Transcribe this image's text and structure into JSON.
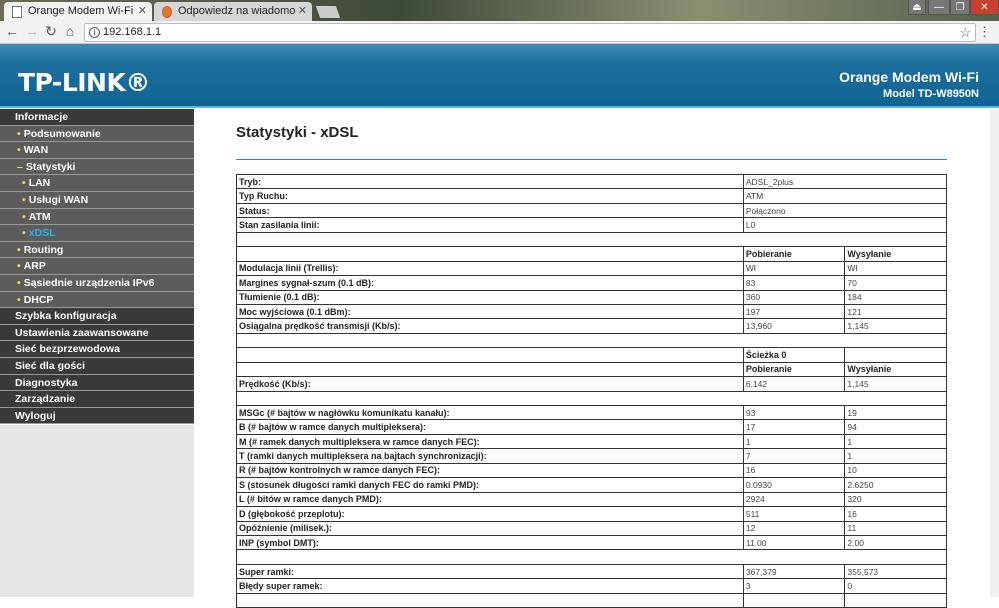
{
  "browser": {
    "tabs": [
      {
        "title": "Orange Modem Wi-Fi",
        "active": true
      },
      {
        "title": "Odpowiedz na wiadomo",
        "active": false
      }
    ],
    "url": "192.168.1.1"
  },
  "header": {
    "logo": "TP-LINK®",
    "title": "Orange Modem Wi-Fi",
    "model": "Model TD-W8950N",
    "colors": {
      "header": "#0f6394",
      "accent": "#27b6e8"
    }
  },
  "sidebar": {
    "items": [
      {
        "label": "Informacje",
        "level": "top",
        "bullet": ""
      },
      {
        "label": "Podsumowanie",
        "level": "sub",
        "bullet": "•"
      },
      {
        "label": "WAN",
        "level": "sub",
        "bullet": "•"
      },
      {
        "label": "Statystyki",
        "level": "sub",
        "bullet": "–"
      },
      {
        "label": "LAN",
        "level": "sub2",
        "bullet": "•"
      },
      {
        "label": "Usługi WAN",
        "level": "sub2",
        "bullet": "•"
      },
      {
        "label": "ATM",
        "level": "sub2",
        "bullet": "•"
      },
      {
        "label": "xDSL",
        "level": "sub2",
        "bullet": "•",
        "active": true
      },
      {
        "label": "Routing",
        "level": "sub",
        "bullet": "•"
      },
      {
        "label": "ARP",
        "level": "sub",
        "bullet": "•"
      },
      {
        "label": "Sąsiednie urządzenia IPv6",
        "level": "sub",
        "bullet": "•"
      },
      {
        "label": "DHCP",
        "level": "sub",
        "bullet": "•"
      },
      {
        "label": "Szybka konfiguracja",
        "level": "top",
        "bullet": ""
      },
      {
        "label": "Ustawienia zaawansowane",
        "level": "top",
        "bullet": ""
      },
      {
        "label": "Sieć bezprzewodowa",
        "level": "top",
        "bullet": ""
      },
      {
        "label": "Sieć dla gości",
        "level": "top",
        "bullet": ""
      },
      {
        "label": "Diagnostyka",
        "level": "top",
        "bullet": ""
      },
      {
        "label": "Zarządzanie",
        "level": "top",
        "bullet": ""
      },
      {
        "label": "Wyloguj",
        "level": "top",
        "bullet": ""
      }
    ]
  },
  "main": {
    "title": "Statystyki - xDSL",
    "rows": [
      {
        "type": "wide",
        "label": "Tryb:",
        "value": "ADSL_2plus"
      },
      {
        "type": "wide",
        "label": "Typ Ruchu:",
        "value": "ATM"
      },
      {
        "type": "wide",
        "label": "Status:",
        "value": "Połączono"
      },
      {
        "type": "wide",
        "label": "Stan zasilania linii:",
        "value": "L0"
      },
      {
        "type": "empty"
      },
      {
        "type": "head",
        "label": "",
        "down": "Pobieranie",
        "up": "Wysyłanie"
      },
      {
        "type": "data",
        "label": "Modulacja linii (Trellis):",
        "down": "Wł",
        "up": "Wł"
      },
      {
        "type": "data",
        "label": "Margines sygnał-szum (0.1 dB):",
        "down": "83",
        "up": "70"
      },
      {
        "type": "data",
        "label": "Tłumienie (0.1 dB):",
        "down": "360",
        "up": "184"
      },
      {
        "type": "data",
        "label": "Moc wyjściowa (0.1 dBm):",
        "down": "197",
        "up": "121"
      },
      {
        "type": "data",
        "label": "Osiągalna prędkość transmisji (Kb/s):",
        "down": "13,960",
        "up": "1,145"
      },
      {
        "type": "empty"
      },
      {
        "type": "head",
        "label": "",
        "down": "Ścieżka 0",
        "up": ""
      },
      {
        "type": "head",
        "label": "",
        "down": "Pobieranie",
        "up": "Wysyłanie"
      },
      {
        "type": "data",
        "label": "Prędkość (Kb/s):",
        "down": "6,142",
        "up": "1,145"
      },
      {
        "type": "empty"
      },
      {
        "type": "data",
        "label": "MSGc (# bajtów w nagłówku komunikatu kanału):",
        "down": "93",
        "up": "19"
      },
      {
        "type": "data",
        "label": "B (# bajtów w ramce danych multipleksera):",
        "down": "17",
        "up": "94"
      },
      {
        "type": "data",
        "label": "M (# ramek danych multipleksera w ramce danych FEC):",
        "down": "1",
        "up": "1"
      },
      {
        "type": "data",
        "label": "T (ramki danych multipleksera na bajtach synchronizacji):",
        "down": "7",
        "up": "1"
      },
      {
        "type": "data",
        "label": "R (# bajtów kontrolnych w ramce danych FEC):",
        "down": "16",
        "up": "10"
      },
      {
        "type": "data",
        "label": "S (stosunek długości ramki danych FEC do ramki PMD):",
        "down": "0.0930",
        "up": "2.6250"
      },
      {
        "type": "data",
        "label": "L (# bitów w ramce danych PMD):",
        "down": "2924",
        "up": "320"
      },
      {
        "type": "data",
        "label": "D (głębokość przeplotu):",
        "down": "511",
        "up": "16"
      },
      {
        "type": "data",
        "label": "Opóźnienie (milisek.):",
        "down": "12",
        "up": "11"
      },
      {
        "type": "data",
        "label": "INP (symbol DMT):",
        "down": "11.00",
        "up": "2.00"
      },
      {
        "type": "empty"
      },
      {
        "type": "data",
        "label": "Super ramki:",
        "down": "367,379",
        "up": "355,573"
      },
      {
        "type": "data",
        "label": "Błędy super ramek:",
        "down": "3",
        "up": "0"
      },
      {
        "type": "data",
        "label": "",
        "down": "",
        "up": ""
      }
    ]
  }
}
